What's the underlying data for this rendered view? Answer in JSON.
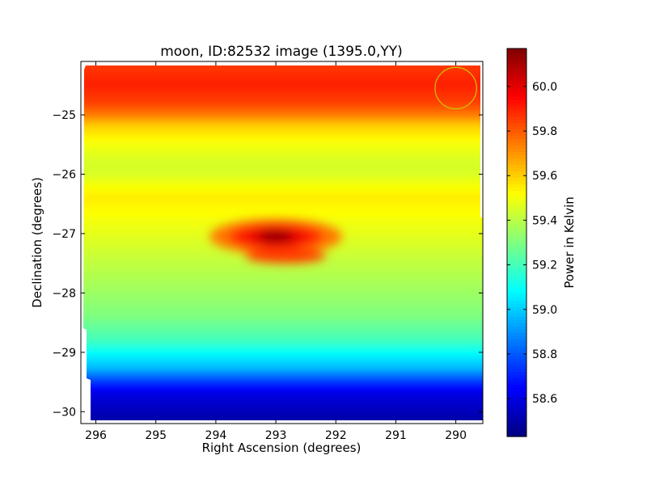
{
  "chart_data": {
    "type": "heatmap",
    "title": "moon, ID:82532 image (1395.0,YY)",
    "xlabel": "Right Ascension (degrees)",
    "ylabel": "Declination (degrees)",
    "xlim": [
      296.25,
      289.55
    ],
    "ylim": [
      -30.2,
      -24.1
    ],
    "x_ticks": [
      296,
      295,
      294,
      293,
      292,
      291,
      290
    ],
    "x_tick_labels": [
      "296",
      "295",
      "294",
      "293",
      "292",
      "291",
      "290"
    ],
    "y_ticks": [
      -25,
      -26,
      -27,
      -28,
      -29,
      -30
    ],
    "y_tick_labels": [
      "−25",
      "−26",
      "−27",
      "−28",
      "−29",
      "−30"
    ],
    "colorbar": {
      "label": "Power in Kelvin",
      "vmin": 58.43,
      "vmax": 60.17,
      "colormap": "jet",
      "ticks": [
        58.6,
        58.8,
        59.0,
        59.2,
        59.4,
        59.6,
        59.8,
        60.0
      ],
      "tick_labels": [
        "58.6",
        "58.8",
        "59.0",
        "59.2",
        "59.4",
        "59.6",
        "59.8",
        "60.0"
      ]
    },
    "dec_profile": [
      {
        "dec": -24.15,
        "value": 59.85
      },
      {
        "dec": -24.5,
        "value": 59.9
      },
      {
        "dec": -24.8,
        "value": 59.85
      },
      {
        "dec": -25.0,
        "value": 59.75
      },
      {
        "dec": -25.2,
        "value": 59.6
      },
      {
        "dec": -25.5,
        "value": 59.5
      },
      {
        "dec": -25.8,
        "value": 59.45
      },
      {
        "dec": -26.0,
        "value": 59.45
      },
      {
        "dec": -26.4,
        "value": 59.55
      },
      {
        "dec": -26.8,
        "value": 59.5
      },
      {
        "dec": -27.2,
        "value": 59.45
      },
      {
        "dec": -27.6,
        "value": 59.4
      },
      {
        "dec": -28.0,
        "value": 59.35
      },
      {
        "dec": -28.4,
        "value": 59.3
      },
      {
        "dec": -28.8,
        "value": 59.2
      },
      {
        "dec": -29.1,
        "value": 59.05
      },
      {
        "dec": -29.3,
        "value": 58.95
      },
      {
        "dec": -29.5,
        "value": 58.75
      },
      {
        "dec": -29.7,
        "value": 58.6
      },
      {
        "dec": -30.15,
        "value": 58.5
      }
    ],
    "hotspot": {
      "ra": 293.0,
      "dec": -27.05,
      "peak_value": 60.15
    },
    "annotation_circle": {
      "ra": 290.0,
      "dec": -24.55,
      "radius_deg": 0.35,
      "color": "#c8c800"
    }
  }
}
